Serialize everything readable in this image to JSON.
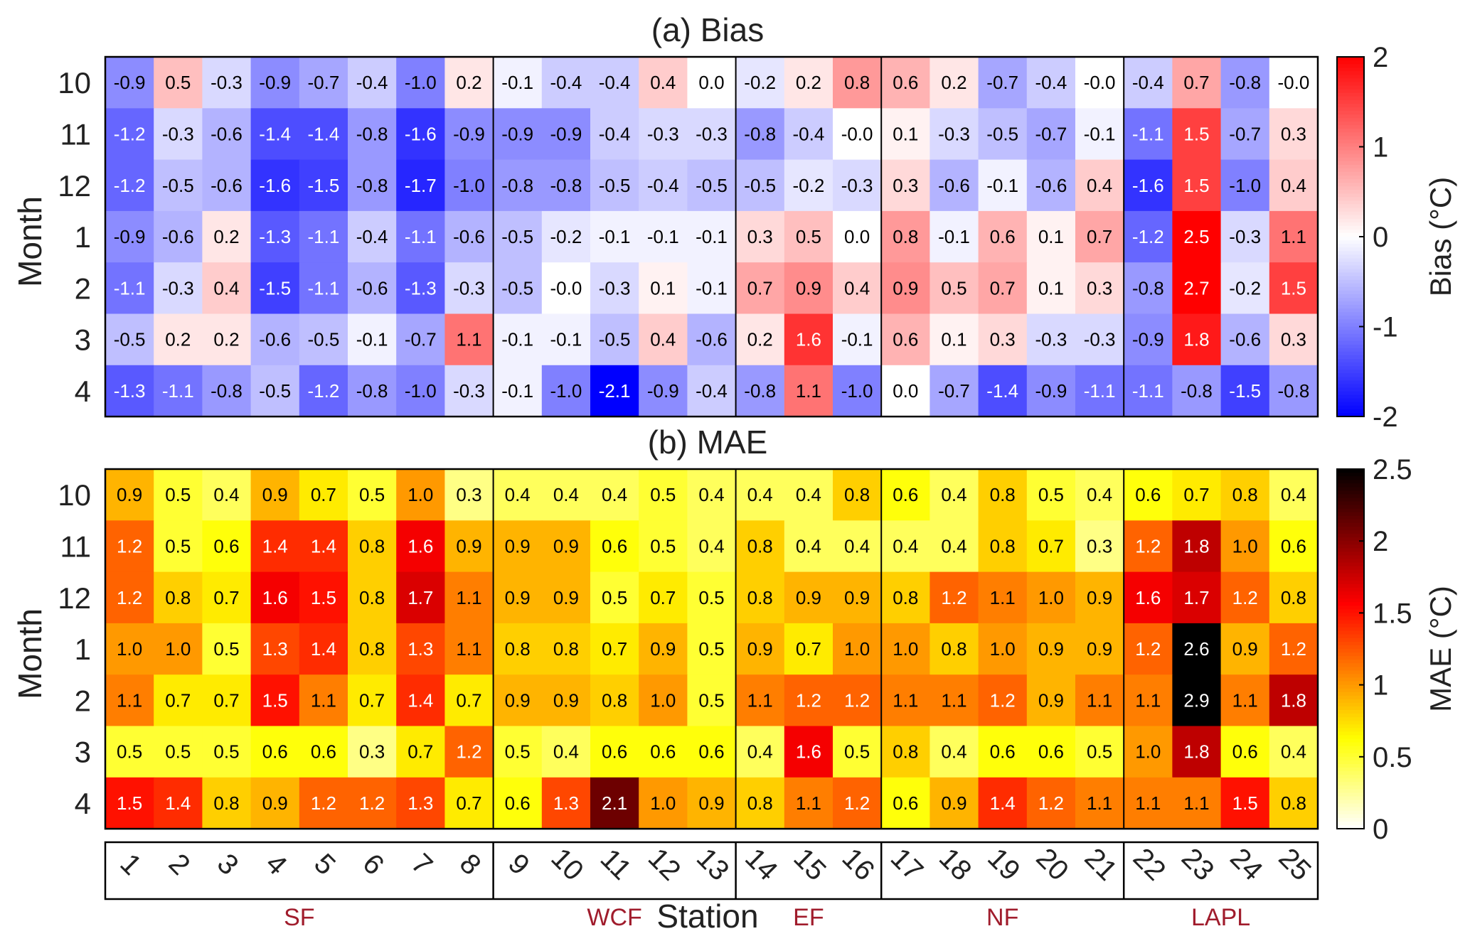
{
  "chart_data": [
    {
      "type": "heatmap",
      "panel_title": "(a) Bias",
      "ylabel": "Month",
      "colorbar_label": "Bias (°C)",
      "colormap": "blue-white-red",
      "colors": {
        "low": "#0000ff",
        "mid": "#ffffff",
        "high": "#ff0000"
      },
      "clim": [
        -2,
        2
      ],
      "colorbar_ticks": [
        "-2",
        "-1",
        "0",
        "1",
        "2"
      ],
      "months": [
        "10",
        "11",
        "12",
        "1",
        "2",
        "3",
        "4"
      ],
      "stations": [
        "1",
        "2",
        "3",
        "4",
        "5",
        "6",
        "7",
        "8",
        "9",
        "10",
        "11",
        "12",
        "13",
        "14",
        "15",
        "16",
        "17",
        "18",
        "19",
        "20",
        "21",
        "22",
        "23",
        "24",
        "25"
      ],
      "values": [
        [
          "-0.9",
          "0.5",
          "-0.3",
          "-0.9",
          "-0.7",
          "-0.4",
          "-1.0",
          "0.2",
          "-0.1",
          "-0.4",
          "-0.4",
          "0.4",
          "0.0",
          "-0.2",
          "0.2",
          "0.8",
          "0.6",
          "0.2",
          "-0.7",
          "-0.4",
          "-0.0",
          "-0.4",
          "0.7",
          "-0.8",
          "-0.0"
        ],
        [
          "-1.2",
          "-0.3",
          "-0.6",
          "-1.4",
          "-1.4",
          "-0.8",
          "-1.6",
          "-0.9",
          "-0.9",
          "-0.9",
          "-0.4",
          "-0.3",
          "-0.3",
          "-0.8",
          "-0.4",
          "-0.0",
          "0.1",
          "-0.3",
          "-0.5",
          "-0.7",
          "-0.1",
          "-1.1",
          "1.5",
          "-0.7",
          "0.3"
        ],
        [
          "-1.2",
          "-0.5",
          "-0.6",
          "-1.6",
          "-1.5",
          "-0.8",
          "-1.7",
          "-1.0",
          "-0.8",
          "-0.8",
          "-0.5",
          "-0.4",
          "-0.5",
          "-0.5",
          "-0.2",
          "-0.3",
          "0.3",
          "-0.6",
          "-0.1",
          "-0.6",
          "0.4",
          "-1.6",
          "1.5",
          "-1.0",
          "0.4"
        ],
        [
          "-0.9",
          "-0.6",
          "0.2",
          "-1.3",
          "-1.1",
          "-0.4",
          "-1.1",
          "-0.6",
          "-0.5",
          "-0.2",
          "-0.1",
          "-0.1",
          "-0.1",
          "0.3",
          "0.5",
          "0.0",
          "0.8",
          "-0.1",
          "0.6",
          "0.1",
          "0.7",
          "-1.2",
          "2.5",
          "-0.3",
          "1.1"
        ],
        [
          "-1.1",
          "-0.3",
          "0.4",
          "-1.5",
          "-1.1",
          "-0.6",
          "-1.3",
          "-0.3",
          "-0.5",
          "-0.0",
          "-0.3",
          "0.1",
          "-0.1",
          "0.7",
          "0.9",
          "0.4",
          "0.9",
          "0.5",
          "0.7",
          "0.1",
          "0.3",
          "-0.8",
          "2.7",
          "-0.2",
          "1.5"
        ],
        [
          "-0.5",
          "0.2",
          "0.2",
          "-0.6",
          "-0.5",
          "-0.1",
          "-0.7",
          "1.1",
          "-0.1",
          "-0.1",
          "-0.5",
          "0.4",
          "-0.6",
          "0.2",
          "1.6",
          "-0.1",
          "0.6",
          "0.1",
          "0.3",
          "-0.3",
          "-0.3",
          "-0.9",
          "1.8",
          "-0.6",
          "0.3"
        ],
        [
          "-1.3",
          "-1.1",
          "-0.8",
          "-0.5",
          "-1.2",
          "-0.8",
          "-1.0",
          "-0.3",
          "-0.1",
          "-1.0",
          "-2.1",
          "-0.9",
          "-0.4",
          "-0.8",
          "1.1",
          "-1.0",
          "0.0",
          "-0.7",
          "-1.4",
          "-0.9",
          "-1.1",
          "-1.1",
          "-0.8",
          "-1.5",
          "-0.8"
        ]
      ]
    },
    {
      "type": "heatmap",
      "panel_title": "(b) MAE",
      "ylabel": "Month",
      "xlabel": "Station",
      "colorbar_label": "MAE (°C)",
      "colormap": "hot (reversed)",
      "clim": [
        0,
        2.5
      ],
      "colorbar_ticks": [
        "0",
        "0.5",
        "1",
        "1.5",
        "2",
        "2.5"
      ],
      "months": [
        "10",
        "11",
        "12",
        "1",
        "2",
        "3",
        "4"
      ],
      "stations": [
        "1",
        "2",
        "3",
        "4",
        "5",
        "6",
        "7",
        "8",
        "9",
        "10",
        "11",
        "12",
        "13",
        "14",
        "15",
        "16",
        "17",
        "18",
        "19",
        "20",
        "21",
        "22",
        "23",
        "24",
        "25"
      ],
      "values": [
        [
          "0.9",
          "0.5",
          "0.4",
          "0.9",
          "0.7",
          "0.5",
          "1.0",
          "0.3",
          "0.4",
          "0.4",
          "0.4",
          "0.5",
          "0.4",
          "0.4",
          "0.4",
          "0.8",
          "0.6",
          "0.4",
          "0.8",
          "0.5",
          "0.4",
          "0.6",
          "0.7",
          "0.8",
          "0.4"
        ],
        [
          "1.2",
          "0.5",
          "0.6",
          "1.4",
          "1.4",
          "0.8",
          "1.6",
          "0.9",
          "0.9",
          "0.9",
          "0.6",
          "0.5",
          "0.4",
          "0.8",
          "0.4",
          "0.4",
          "0.4",
          "0.4",
          "0.8",
          "0.7",
          "0.3",
          "1.2",
          "1.8",
          "1.0",
          "0.6"
        ],
        [
          "1.2",
          "0.8",
          "0.7",
          "1.6",
          "1.5",
          "0.8",
          "1.7",
          "1.1",
          "0.9",
          "0.9",
          "0.5",
          "0.7",
          "0.5",
          "0.8",
          "0.9",
          "0.9",
          "0.8",
          "1.2",
          "1.1",
          "1.0",
          "0.9",
          "1.6",
          "1.7",
          "1.2",
          "0.8"
        ],
        [
          "1.0",
          "1.0",
          "0.5",
          "1.3",
          "1.4",
          "0.8",
          "1.3",
          "1.1",
          "0.8",
          "0.8",
          "0.7",
          "0.9",
          "0.5",
          "0.9",
          "0.7",
          "1.0",
          "1.0",
          "0.8",
          "1.0",
          "0.9",
          "0.9",
          "1.2",
          "2.6",
          "0.9",
          "1.2"
        ],
        [
          "1.1",
          "0.7",
          "0.7",
          "1.5",
          "1.1",
          "0.7",
          "1.4",
          "0.7",
          "0.9",
          "0.9",
          "0.8",
          "1.0",
          "0.5",
          "1.1",
          "1.2",
          "1.2",
          "1.1",
          "1.1",
          "1.2",
          "0.9",
          "1.1",
          "1.1",
          "2.9",
          "1.1",
          "1.8"
        ],
        [
          "0.5",
          "0.5",
          "0.5",
          "0.6",
          "0.6",
          "0.3",
          "0.7",
          "1.2",
          "0.5",
          "0.4",
          "0.6",
          "0.6",
          "0.6",
          "0.4",
          "1.6",
          "0.5",
          "0.8",
          "0.4",
          "0.6",
          "0.6",
          "0.5",
          "1.0",
          "1.8",
          "0.6",
          "0.4"
        ],
        [
          "1.5",
          "1.4",
          "0.8",
          "0.9",
          "1.2",
          "1.2",
          "1.3",
          "0.7",
          "0.6",
          "1.3",
          "2.1",
          "1.0",
          "0.9",
          "0.8",
          "1.1",
          "1.2",
          "0.6",
          "0.9",
          "1.4",
          "1.2",
          "1.1",
          "1.1",
          "1.1",
          "1.5",
          "0.8"
        ]
      ]
    }
  ],
  "groups": [
    {
      "label": "SF",
      "first_station": 1,
      "last_station": 8
    },
    {
      "label": "WCF",
      "first_station": 9,
      "last_station": 13
    },
    {
      "label": "EF",
      "first_station": 14,
      "last_station": 16
    },
    {
      "label": "NF",
      "first_station": 17,
      "last_station": 21
    },
    {
      "label": "LAPL",
      "first_station": 22,
      "last_station": 25
    }
  ],
  "group_label_color": "#a01c2c",
  "station_axis_label": "Station"
}
